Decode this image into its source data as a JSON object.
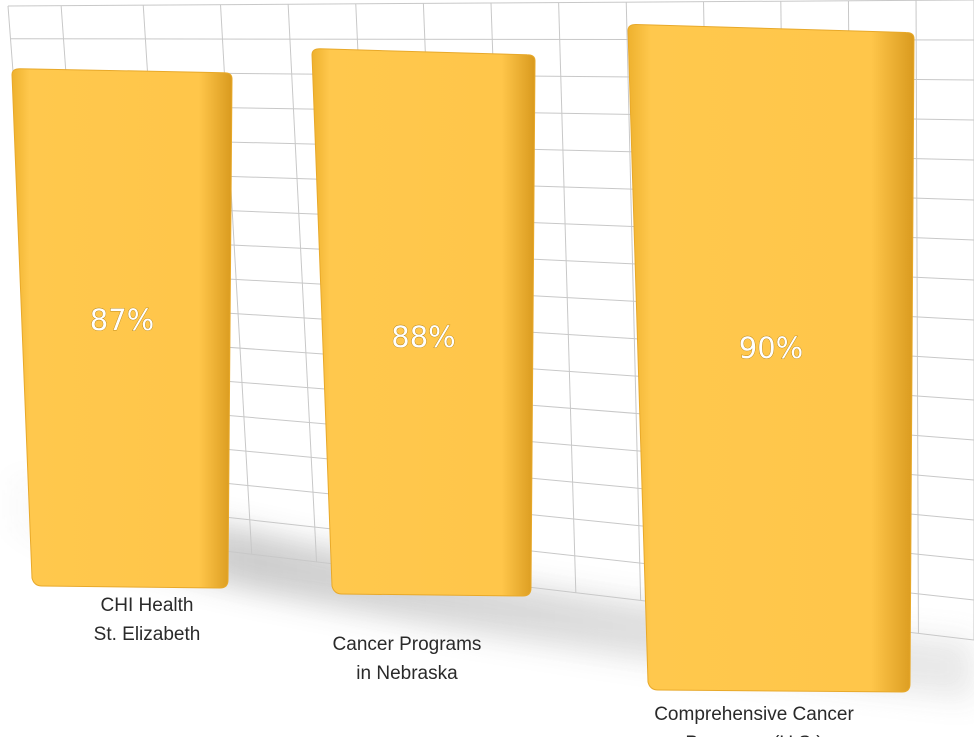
{
  "chart_data": {
    "type": "bar",
    "categories": [
      [
        "CHI Health",
        "St. Elizabeth"
      ],
      [
        "Cancer Programs",
        "in Nebraska"
      ],
      [
        "Comprehensive Cancer",
        "Programs (U.S.)"
      ]
    ],
    "values": [
      87,
      88,
      90
    ],
    "data_labels": [
      "87%",
      "88%",
      "90%"
    ],
    "title": "",
    "xlabel": "",
    "ylabel": "",
    "unit": "%",
    "grid": true,
    "colors": {
      "bar": "#ffc84d",
      "bar_dark": "#e8a92a",
      "grid": "#c8c8c8",
      "shadow": "#9a9a9a"
    }
  }
}
